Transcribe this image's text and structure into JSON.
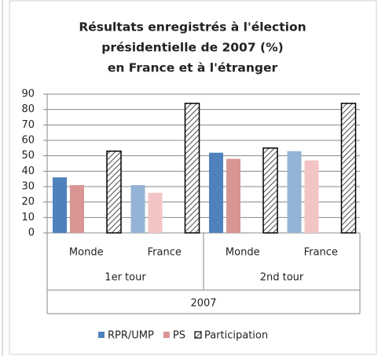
{
  "chart_data": {
    "type": "bar",
    "title": [
      "Résultats enregistrés à l'élection",
      "présidentielle de 2007 (%)",
      "en France et à l'étranger"
    ],
    "categories": [
      "Monde",
      "France",
      "Monde",
      "France"
    ],
    "groups": [
      "1er tour",
      "2nd tour"
    ],
    "super_group": "2007",
    "series": [
      {
        "name": "RPR/UMP",
        "color": "#4f81bd",
        "colors": [
          "#4f81bd",
          "#95b3d7",
          "#4f81bd",
          "#95b3d7"
        ],
        "values": [
          36,
          31,
          52,
          53
        ]
      },
      {
        "name": "PS",
        "color": "#d99594",
        "colors": [
          "#d99594",
          "#f2c4c3",
          "#d99594",
          "#f2c4c3"
        ],
        "values": [
          31,
          26,
          48,
          47
        ]
      },
      {
        "name": "Participation",
        "color": "#000000",
        "pattern": "hatch",
        "values": [
          53,
          84,
          55,
          84
        ]
      }
    ],
    "ylim": [
      0,
      90
    ],
    "yticks": [
      0,
      10,
      20,
      30,
      40,
      50,
      60,
      70,
      80,
      90
    ],
    "grid": true,
    "legend": "bottom"
  }
}
